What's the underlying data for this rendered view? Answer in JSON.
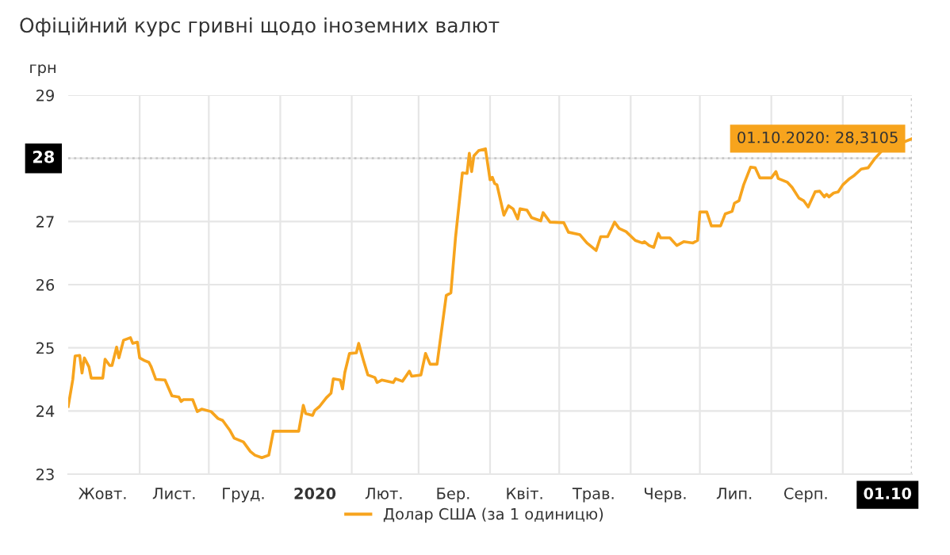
{
  "chart_data": {
    "type": "line",
    "title": "Офіційний курс гривні щодо іноземних валют",
    "ylabel": "грн",
    "xlim": [
      "2019-10-01",
      "2020-10-01"
    ],
    "xticks": [
      {
        "value": "2019-11-01",
        "label": null
      },
      {
        "value": "2019-12-01",
        "label": null
      },
      {
        "value": "2020-01-01",
        "label": null
      },
      {
        "value": "2020-02-01",
        "label": null
      },
      {
        "value": "2020-03-01",
        "label": null
      },
      {
        "value": "2020-04-01",
        "label": null
      },
      {
        "value": "2020-05-01",
        "label": null
      },
      {
        "value": "2020-06-01",
        "label": null
      },
      {
        "value": "2020-07-01",
        "label": null
      },
      {
        "value": "2020-08-01",
        "label": null
      },
      {
        "value": "2020-09-01",
        "label": null
      },
      {
        "value": "2019-10-16",
        "label": "Жовт."
      },
      {
        "value": "2019-11-16",
        "label": "Лист."
      },
      {
        "value": "2019-12-16",
        "label": "Груд."
      },
      {
        "value": "2020-01-16",
        "label": "2020"
      },
      {
        "value": "2020-02-15",
        "label": "Лют."
      },
      {
        "value": "2020-03-16",
        "label": "Бер."
      },
      {
        "value": "2020-04-16",
        "label": "Квіт."
      },
      {
        "value": "2020-05-16",
        "label": "Трав."
      },
      {
        "value": "2020-06-16",
        "label": "Черв."
      },
      {
        "value": "2020-07-16",
        "label": "Лип."
      },
      {
        "value": "2020-08-16",
        "label": "Серп."
      },
      {
        "value": "2020-10-01",
        "label": "01.10"
      }
    ],
    "ylim": [
      23,
      29
    ],
    "yticks": [
      23,
      24,
      25,
      26,
      27,
      28,
      29
    ],
    "grid": true,
    "legend": "bottom",
    "marker": "none",
    "line_style": "solid",
    "series": [
      {
        "name": "Долар США (за 1 одиницю)",
        "color": "#f7a41d",
        "x": [
          "2019-10-01",
          "2019-10-03",
          "2019-10-04",
          "2019-10-06",
          "2019-10-07",
          "2019-10-08",
          "2019-10-10",
          "2019-10-11",
          "2019-10-16",
          "2019-10-17",
          "2019-10-19",
          "2019-10-20",
          "2019-10-22",
          "2019-10-23",
          "2019-10-25",
          "2019-10-28",
          "2019-10-29",
          "2019-10-31",
          "2019-11-01",
          "2019-11-03",
          "2019-11-05",
          "2019-11-06",
          "2019-11-08",
          "2019-11-12",
          "2019-11-15",
          "2019-11-18",
          "2019-11-19",
          "2019-11-20",
          "2019-11-24",
          "2019-11-26",
          "2019-11-28",
          "2019-12-02",
          "2019-12-05",
          "2019-12-07",
          "2019-12-10",
          "2019-12-12",
          "2019-12-16",
          "2019-12-19",
          "2019-12-21",
          "2019-12-24",
          "2019-12-27",
          "2019-12-29",
          "2020-01-09",
          "2020-01-11",
          "2020-01-12",
          "2020-01-15",
          "2020-01-16",
          "2020-01-18",
          "2020-01-21",
          "2020-01-23",
          "2020-01-24",
          "2020-01-27",
          "2020-01-28",
          "2020-01-29",
          "2020-01-31",
          "2020-02-03",
          "2020-02-04",
          "2020-02-06",
          "2020-02-08",
          "2020-02-11",
          "2020-02-12",
          "2020-02-14",
          "2020-02-19",
          "2020-02-20",
          "2020-02-23",
          "2020-02-26",
          "2020-02-27",
          "2020-03-02",
          "2020-03-04",
          "2020-03-06",
          "2020-03-09",
          "2020-03-13",
          "2020-03-15",
          "2020-03-17",
          "2020-03-20",
          "2020-03-22",
          "2020-03-23",
          "2020-03-24",
          "2020-03-25",
          "2020-03-27",
          "2020-03-30",
          "2020-04-01",
          "2020-04-02",
          "2020-04-03",
          "2020-04-04",
          "2020-04-07",
          "2020-04-09",
          "2020-04-11",
          "2020-04-13",
          "2020-04-14",
          "2020-04-17",
          "2020-04-19",
          "2020-04-23",
          "2020-04-24",
          "2020-04-27",
          "2020-05-03",
          "2020-05-05",
          "2020-05-10",
          "2020-05-13",
          "2020-05-17",
          "2020-05-19",
          "2020-05-22",
          "2020-05-24",
          "2020-05-25",
          "2020-05-27",
          "2020-05-30",
          "2020-06-03",
          "2020-06-06",
          "2020-06-07",
          "2020-06-09",
          "2020-06-11",
          "2020-06-13",
          "2020-06-14",
          "2020-06-18",
          "2020-06-21",
          "2020-06-24",
          "2020-06-28",
          "2020-06-30",
          "2020-07-01",
          "2020-07-04",
          "2020-07-06",
          "2020-07-10",
          "2020-07-12",
          "2020-07-15",
          "2020-07-16",
          "2020-07-18",
          "2020-07-20",
          "2020-07-23",
          "2020-07-25",
          "2020-07-27",
          "2020-08-01",
          "2020-08-03",
          "2020-08-04",
          "2020-08-08",
          "2020-08-10",
          "2020-08-13",
          "2020-08-15",
          "2020-08-17",
          "2020-08-20",
          "2020-08-22",
          "2020-08-24",
          "2020-08-25",
          "2020-08-26",
          "2020-08-28",
          "2020-08-30",
          "2020-09-01",
          "2020-09-04",
          "2020-09-06",
          "2020-09-09",
          "2020-09-12",
          "2020-09-15",
          "2020-09-18",
          "2020-10-01"
        ],
        "values": [
          24.07,
          24.5,
          24.87,
          24.88,
          24.6,
          24.84,
          24.7,
          24.52,
          24.52,
          24.82,
          24.72,
          24.72,
          25.01,
          24.84,
          25.12,
          25.16,
          25.07,
          25.09,
          24.84,
          24.8,
          24.77,
          24.7,
          24.5,
          24.49,
          24.24,
          24.22,
          24.15,
          24.18,
          24.18,
          23.99,
          24.03,
          23.99,
          23.88,
          23.85,
          23.7,
          23.57,
          23.51,
          23.36,
          23.3,
          23.26,
          23.3,
          23.68,
          23.68,
          24.09,
          23.96,
          23.93,
          24.01,
          24.07,
          24.21,
          24.28,
          24.51,
          24.49,
          24.35,
          24.61,
          24.91,
          24.92,
          25.07,
          24.81,
          24.57,
          24.53,
          24.45,
          24.49,
          24.45,
          24.51,
          24.47,
          24.63,
          24.55,
          24.57,
          24.91,
          24.74,
          24.74,
          25.83,
          25.87,
          26.74,
          27.77,
          27.76,
          28.08,
          27.79,
          28.04,
          28.12,
          28.15,
          27.66,
          27.7,
          27.6,
          27.58,
          27.1,
          27.25,
          27.2,
          27.04,
          27.2,
          27.18,
          27.06,
          27.01,
          27.14,
          26.99,
          26.98,
          26.83,
          26.79,
          26.66,
          26.54,
          26.76,
          26.76,
          26.91,
          26.99,
          26.89,
          26.84,
          26.7,
          26.66,
          26.68,
          26.62,
          26.59,
          26.81,
          26.74,
          26.74,
          26.62,
          26.68,
          26.66,
          26.7,
          27.15,
          27.15,
          26.93,
          26.93,
          27.12,
          27.16,
          27.29,
          27.33,
          27.58,
          27.86,
          27.85,
          27.69,
          27.69,
          27.79,
          27.68,
          27.62,
          27.54,
          27.37,
          27.33,
          27.23,
          27.47,
          27.48,
          27.39,
          27.43,
          27.39,
          27.45,
          27.47,
          27.58,
          27.68,
          27.73,
          27.83,
          27.85,
          28.0,
          28.12,
          28.31
        ]
      }
    ],
    "ref_lines": [
      {
        "axis": "y",
        "value": 28,
        "label": "28",
        "color": "#c8c8c8",
        "line_style": "dotted"
      },
      {
        "axis": "x",
        "value": "2020-10-01",
        "color": "#c8c8c8",
        "line_style": "dotted"
      }
    ],
    "annotations": [
      {
        "text": "01.10.2020: 28,3105",
        "x": "2020-10-01",
        "y": 28.31
      }
    ]
  }
}
